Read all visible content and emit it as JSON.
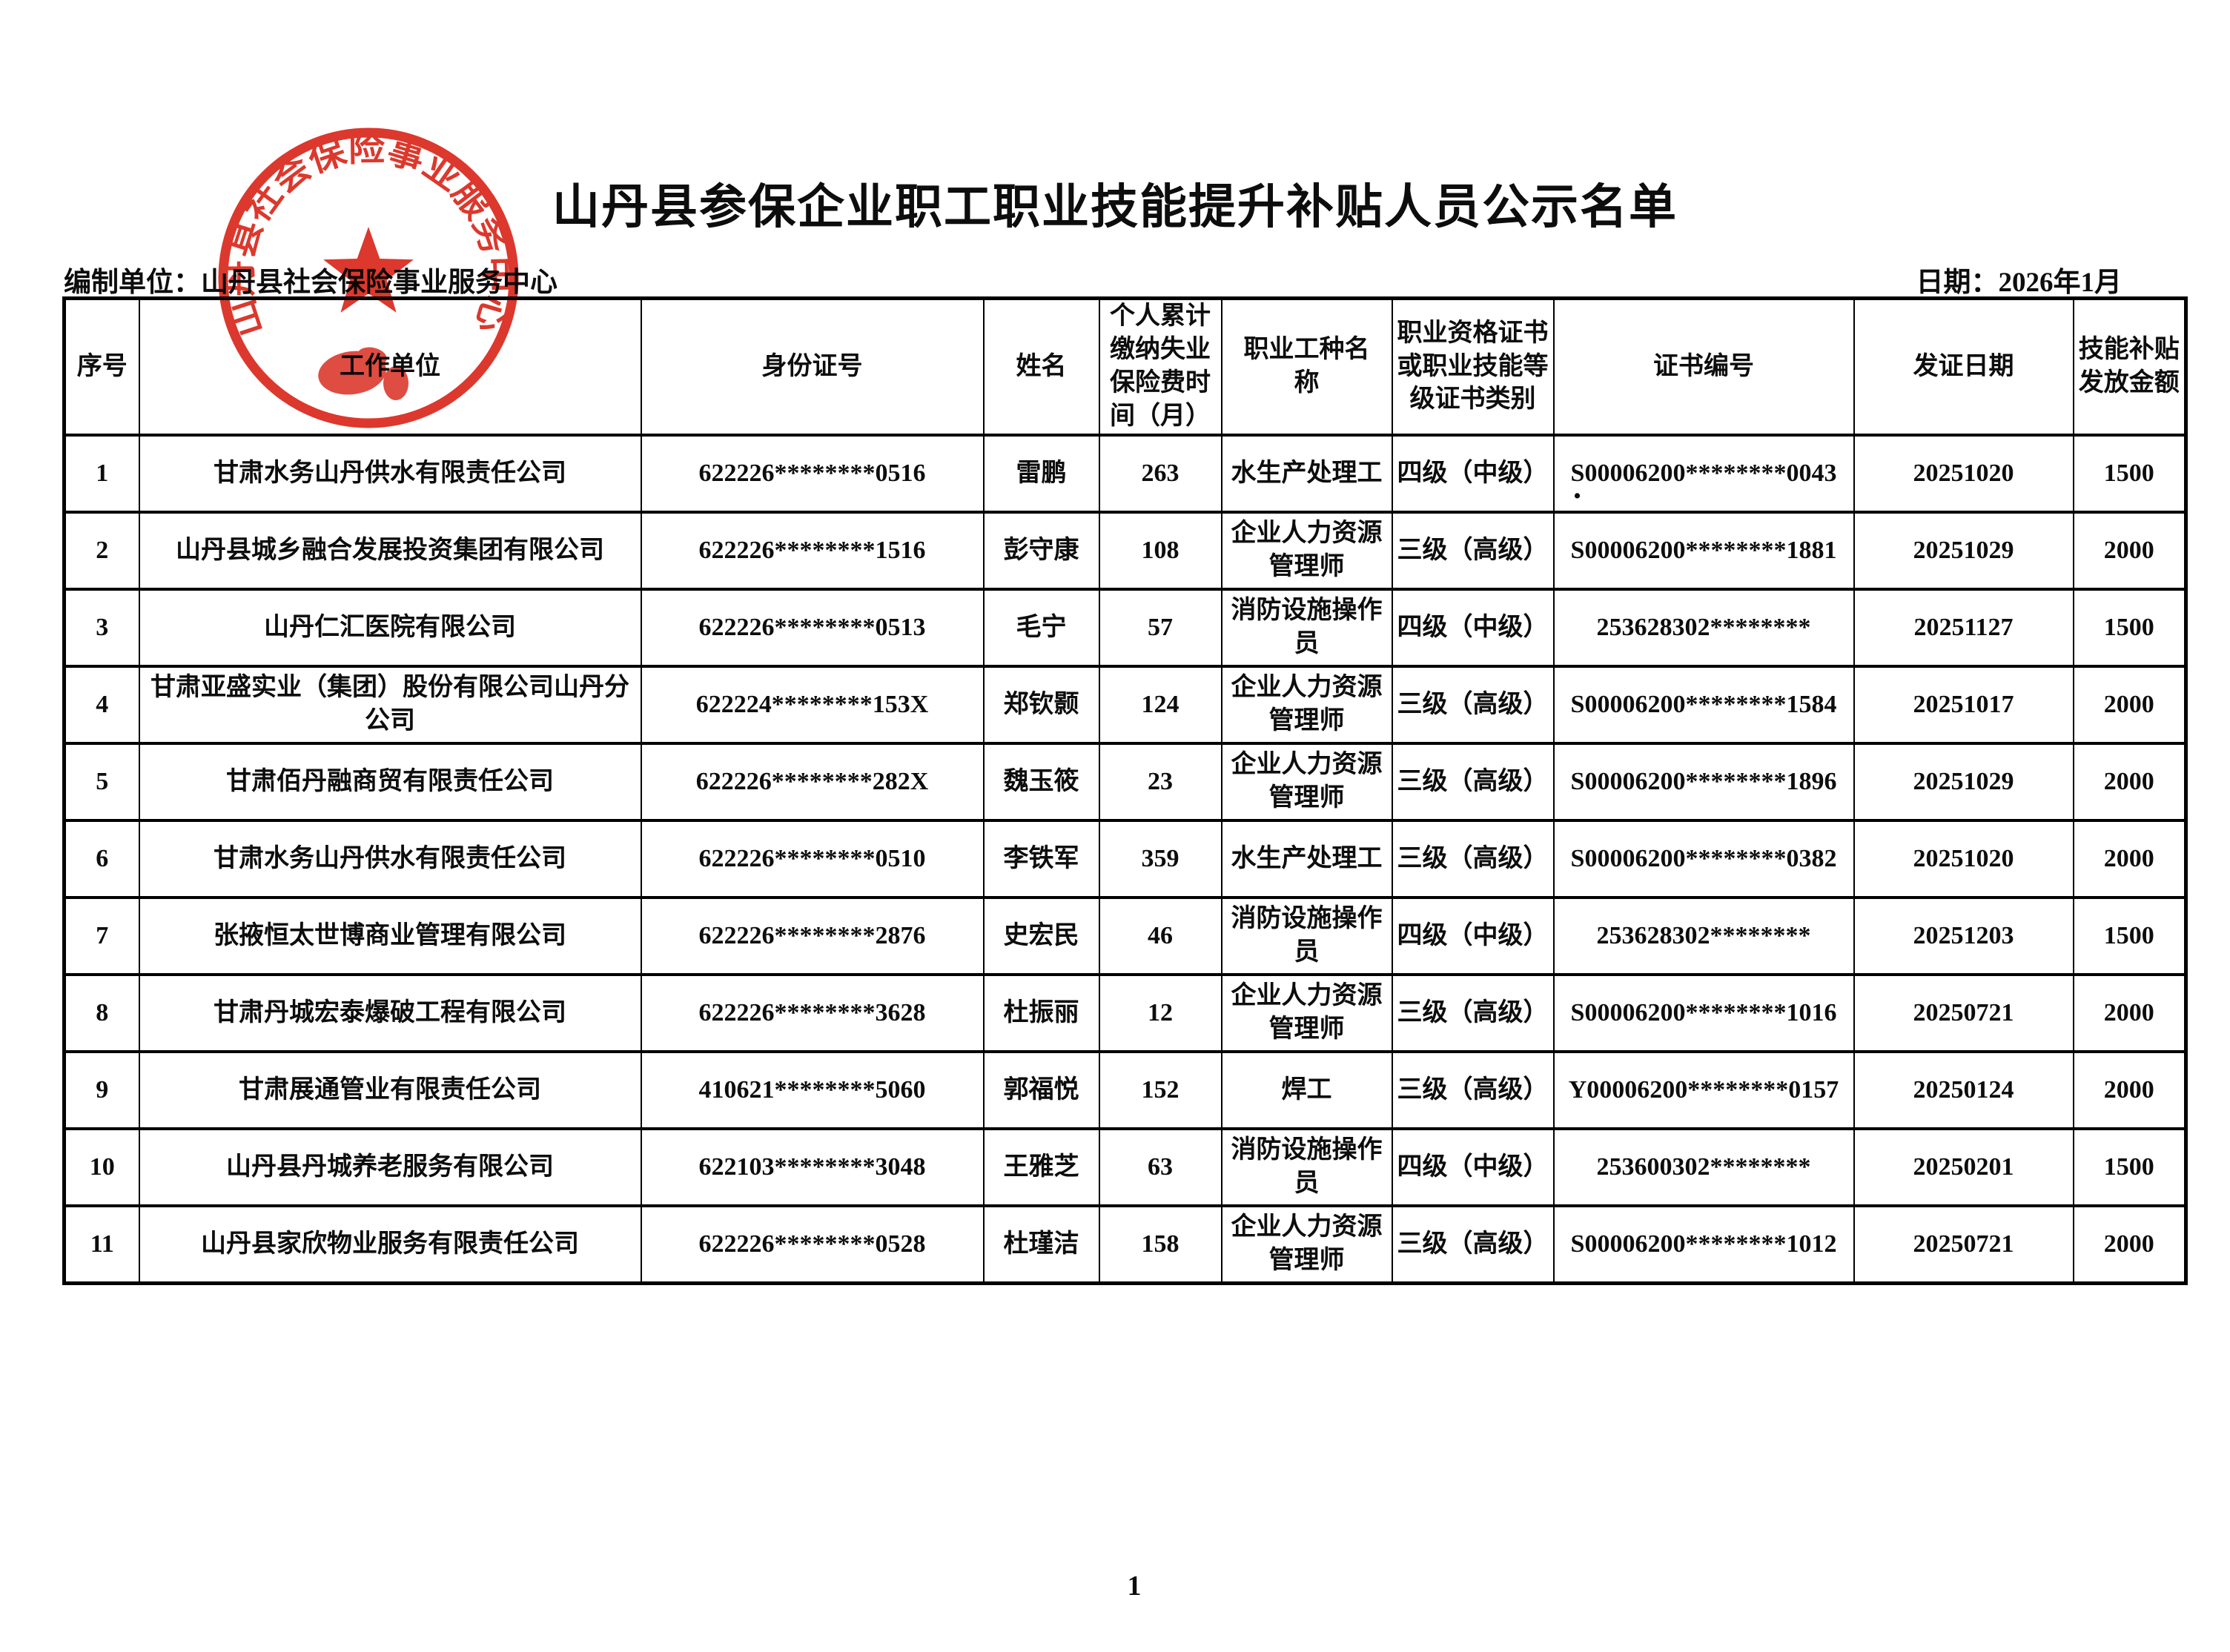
{
  "page": {
    "title": "山丹县参保企业职工职业技能提升补贴人员公示名单",
    "prepared_by": "编制单位：山丹县社会保险事业服务中心",
    "date": "日期：2026年1月",
    "page_number": "1",
    "stray_mark": "."
  },
  "seal": {
    "text": "山丹县社会保险事业服务中心",
    "color": "#d9271b"
  },
  "colors": {
    "seal_red": "#d9271b",
    "text_black": "#0d0d0d",
    "table_border": "#000000"
  },
  "table": {
    "headers": [
      "序号",
      "工作单位",
      "身份证号",
      "姓名",
      "个人累计缴纳失业保险费时间（月）",
      "职业工种名称",
      "职业资格证书或职业技能等级证书类别",
      "证书编号",
      "发证日期",
      "技能补贴发放金额"
    ],
    "rows": [
      [
        "1",
        "甘肃水务山丹供水有限责任公司",
        "622226********0516",
        "雷鹏",
        "263",
        "水生产处理工",
        "四级（中级）",
        "S00006200********0043",
        "20251020",
        "1500"
      ],
      [
        "2",
        "山丹县城乡融合发展投资集团有限公司",
        "622226********1516",
        "彭守康",
        "108",
        "企业人力资源管理师",
        "三级（高级）",
        "S00006200********1881",
        "20251029",
        "2000"
      ],
      [
        "3",
        "山丹仁汇医院有限公司",
        "622226********0513",
        "毛宁",
        "57",
        "消防设施操作员",
        "四级（中级）",
        "253628302********",
        "20251127",
        "1500"
      ],
      [
        "4",
        "甘肃亚盛实业（集团）股份有限公司山丹分公司",
        "622224********153X",
        "郑钦颢",
        "124",
        "企业人力资源管理师",
        "三级（高级）",
        "S00006200********1584",
        "20251017",
        "2000"
      ],
      [
        "5",
        "甘肃佰丹融商贸有限责任公司",
        "622226********282X",
        "魏玉筱",
        "23",
        "企业人力资源管理师",
        "三级（高级）",
        "S00006200********1896",
        "20251029",
        "2000"
      ],
      [
        "6",
        "甘肃水务山丹供水有限责任公司",
        "622226********0510",
        "李铁军",
        "359",
        "水生产处理工",
        "三级（高级）",
        "S00006200********0382",
        "20251020",
        "2000"
      ],
      [
        "7",
        "张掖恒太世博商业管理有限公司",
        "622226********2876",
        "史宏民",
        "46",
        "消防设施操作员",
        "四级（中级）",
        "253628302********",
        "20251203",
        "1500"
      ],
      [
        "8",
        "甘肃丹城宏泰爆破工程有限公司",
        "622226********3628",
        "杜振丽",
        "12",
        "企业人力资源管理师",
        "三级（高级）",
        "S00006200********1016",
        "20250721",
        "2000"
      ],
      [
        "9",
        "甘肃展通管业有限责任公司",
        "410621********5060",
        "郭福悦",
        "152",
        "焊工",
        "三级（高级）",
        "Y00006200********0157",
        "20250124",
        "2000"
      ],
      [
        "10",
        "山丹县丹城养老服务有限公司",
        "622103********3048",
        "王雅芝",
        "63",
        "消防设施操作员",
        "四级（中级）",
        "253600302********",
        "20250201",
        "1500"
      ],
      [
        "11",
        "山丹县家欣物业服务有限责任公司",
        "622226********0528",
        "杜瑾洁",
        "158",
        "企业人力资源管理师",
        "三级（高级）",
        "S00006200********1012",
        "20250721",
        "2000"
      ]
    ]
  }
}
